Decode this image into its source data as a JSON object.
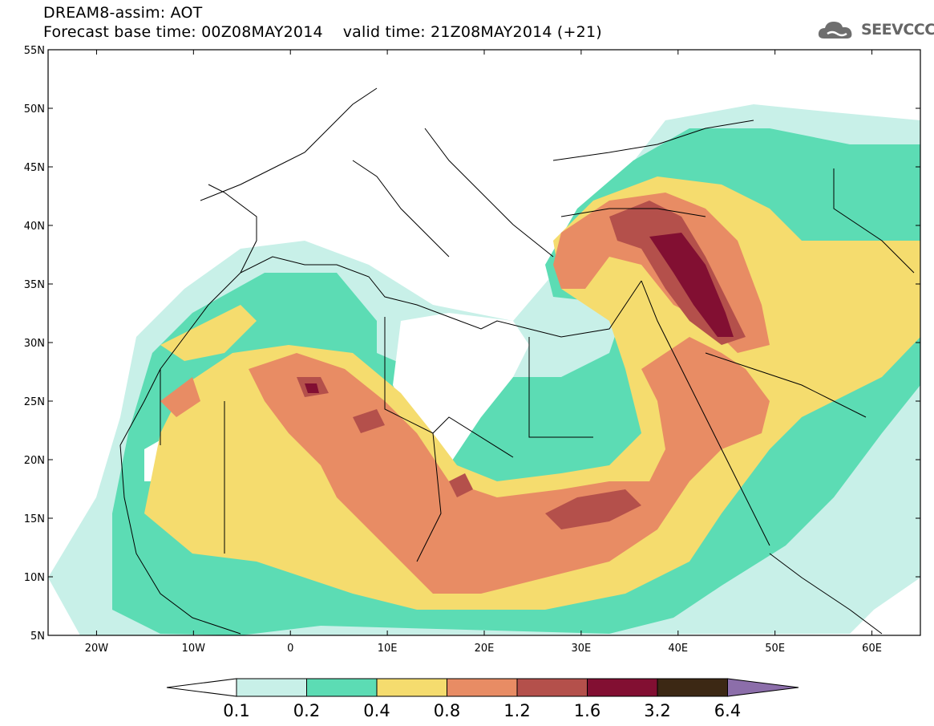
{
  "header": {
    "line1": "DREAM8-assim: AOT",
    "line2": "Forecast base time: 00Z08MAY2014    valid time: 21Z08MAY2014 (+21)"
  },
  "logo": {
    "text": "SEEVCCC",
    "icon": "cloud-icon"
  },
  "map": {
    "variable": "AOT",
    "lon_range": [
      -25,
      65
    ],
    "lat_range": [
      5,
      55
    ],
    "lat_ticks": [
      "55N",
      "50N",
      "45N",
      "40N",
      "35N",
      "30N",
      "25N",
      "20N",
      "15N",
      "10N",
      "5N"
    ],
    "lon_ticks": [
      "20W",
      "10W",
      "0",
      "10E",
      "20E",
      "30E",
      "40E",
      "50E",
      "60E"
    ]
  },
  "colorbar": {
    "labels": [
      "0.1",
      "0.2",
      "0.4",
      "0.8",
      "1.2",
      "1.6",
      "3.2",
      "6.4"
    ],
    "colors": [
      "#c8f0e8",
      "#5cdcb4",
      "#f5dc6e",
      "#e88c64",
      "#b4504b",
      "#820f32",
      "#3c2814",
      "#8c6eaa"
    ]
  }
}
